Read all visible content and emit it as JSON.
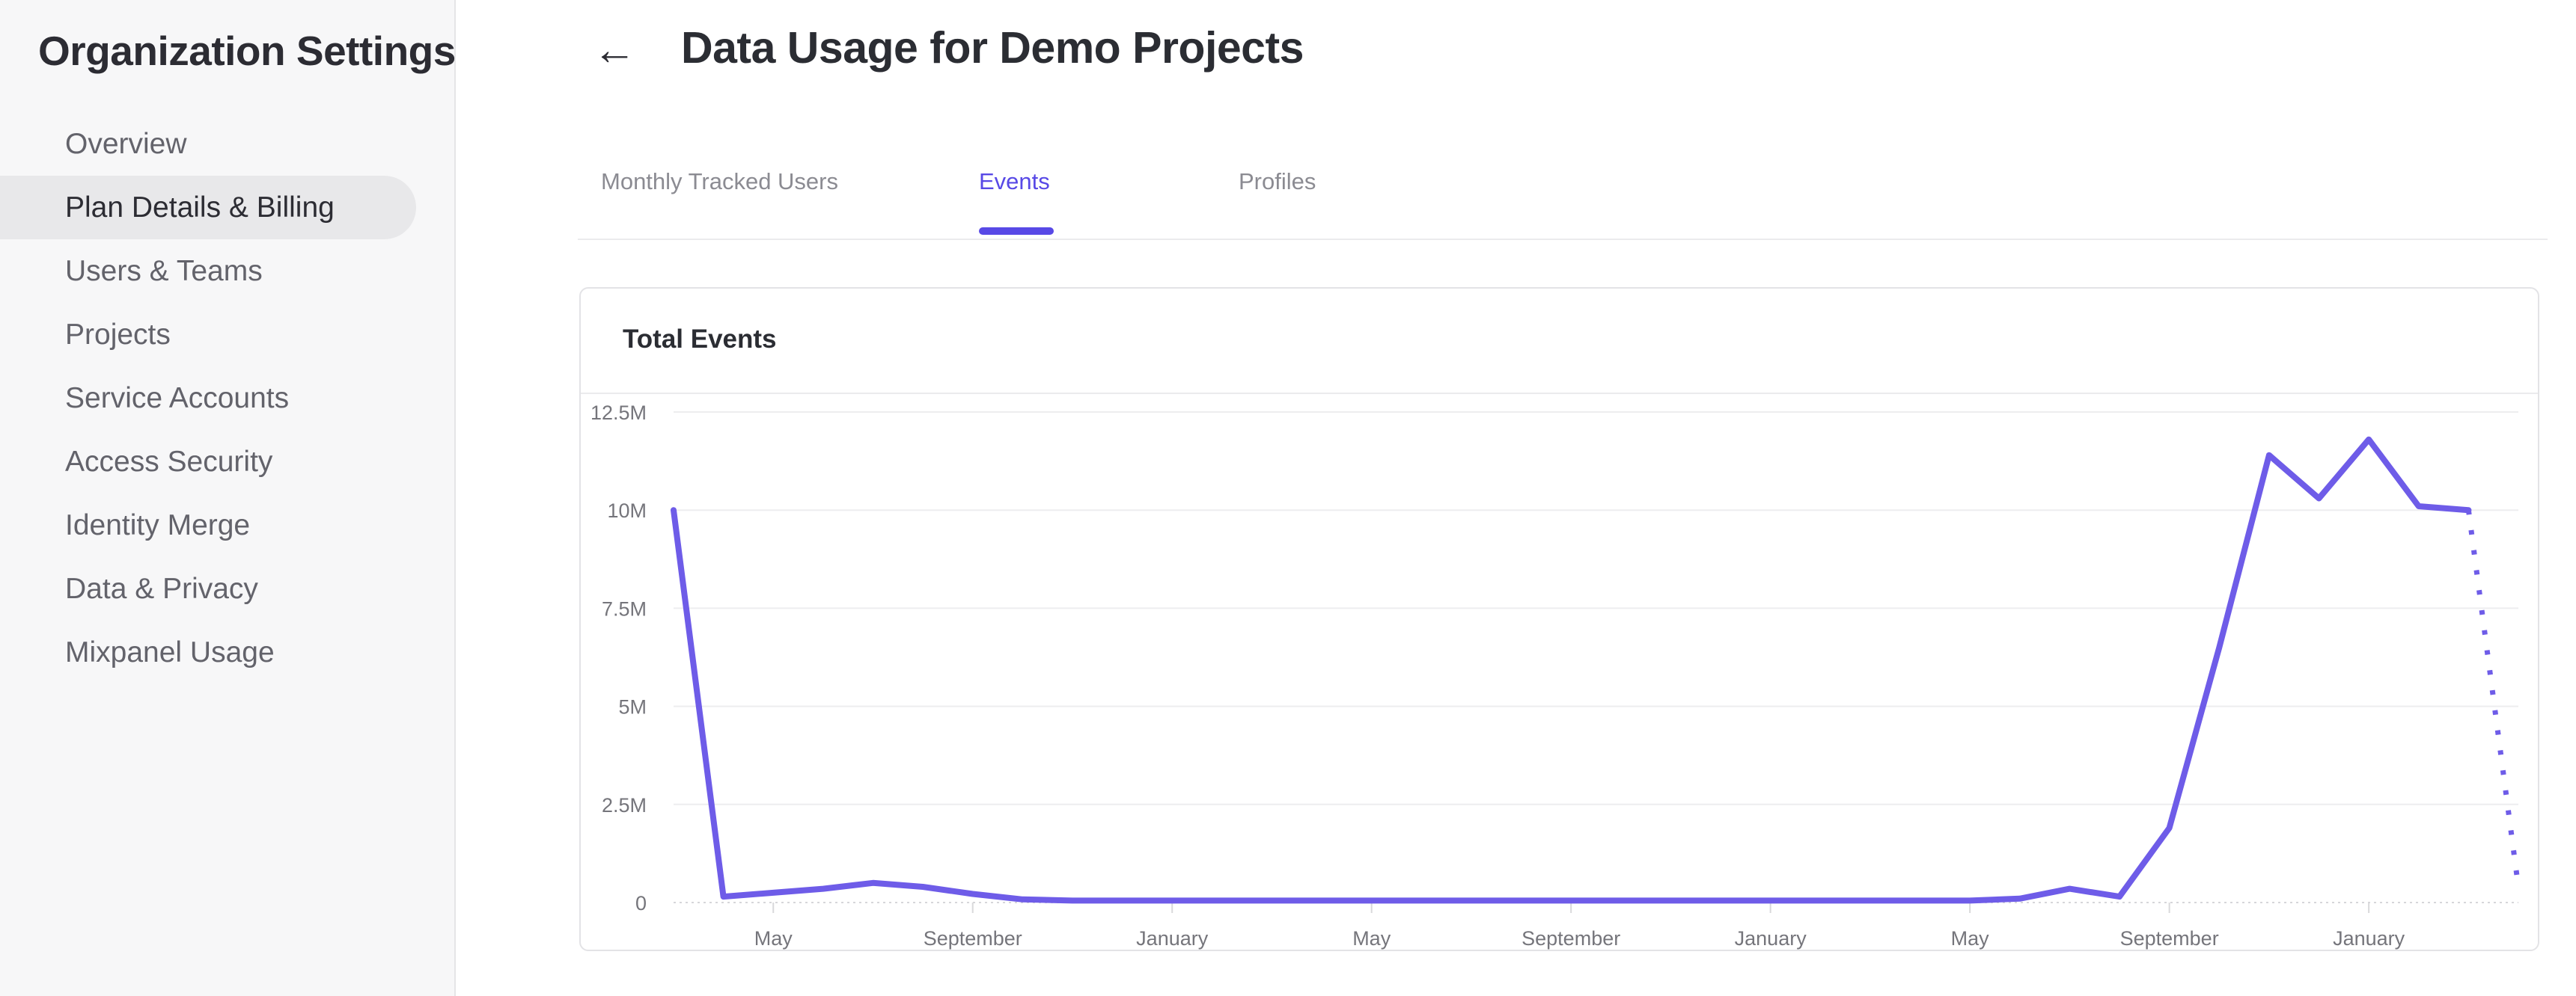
{
  "sidebar": {
    "title": "Organization Settings",
    "items": [
      {
        "label": "Overview",
        "selected": false
      },
      {
        "label": "Plan Details & Billing",
        "selected": true
      },
      {
        "label": "Users & Teams",
        "selected": false
      },
      {
        "label": "Projects",
        "selected": false
      },
      {
        "label": "Service Accounts",
        "selected": false
      },
      {
        "label": "Access Security",
        "selected": false
      },
      {
        "label": "Identity Merge",
        "selected": false
      },
      {
        "label": "Data & Privacy",
        "selected": false
      },
      {
        "label": "Mixpanel Usage",
        "selected": false
      }
    ]
  },
  "header": {
    "back_icon": "←",
    "title": "Data Usage for Demo Projects"
  },
  "tabs": [
    {
      "label": "Monthly Tracked Users",
      "active": false
    },
    {
      "label": "Events",
      "active": true
    },
    {
      "label": "Profiles",
      "active": false
    }
  ],
  "card": {
    "title": "Total Events"
  },
  "colors": {
    "accent_purple": "#5849e6",
    "chart_line": "#6e5ce8",
    "sidebar_bg": "#f7f7f8",
    "selected_item_bg": "#e8e8ea",
    "gridline": "#ededef",
    "axis_dotted": "#d6d6da",
    "axis_label": "#75757b",
    "text_dark": "#2b2d33",
    "text_gray": "#63636b"
  },
  "chart_data": {
    "type": "line",
    "title": "Total Events",
    "unit": "millions of events",
    "grid": true,
    "legend": false,
    "ylim": [
      0,
      12.5
    ],
    "y_tick_values": [
      0,
      2.5,
      5,
      7.5,
      10,
      12.5
    ],
    "y_tick_labels": [
      "0",
      "2.5M",
      "5M",
      "7.5M",
      "10M",
      "12.5M"
    ],
    "x_tick_indices": [
      2,
      6,
      10,
      14,
      18,
      22,
      26,
      30,
      34
    ],
    "x_tick_labels": [
      "May",
      "September",
      "January",
      "May",
      "September",
      "January",
      "May",
      "September",
      "January"
    ],
    "x_months": [
      "March",
      "April",
      "May",
      "June",
      "July",
      "August",
      "September",
      "October",
      "November",
      "December",
      "January",
      "February",
      "March",
      "April",
      "May",
      "June",
      "July",
      "August",
      "September",
      "October",
      "November",
      "December",
      "January",
      "February",
      "March",
      "April",
      "May",
      "June",
      "July",
      "August",
      "September",
      "October",
      "November",
      "December",
      "January",
      "February",
      "March",
      "April"
    ],
    "values_millions": [
      10,
      0.15,
      0.25,
      0.35,
      0.5,
      0.4,
      0.22,
      0.08,
      0.05,
      0.05,
      0.05,
      0.05,
      0.05,
      0.05,
      0.05,
      0.05,
      0.05,
      0.05,
      0.05,
      0.05,
      0.05,
      0.05,
      0.05,
      0.05,
      0.05,
      0.05,
      0.05,
      0.1,
      0.35,
      0.15,
      1.9,
      6.5,
      11.4,
      10.3,
      11.8,
      10.1,
      10,
      0.4
    ],
    "solid_end_index": 36,
    "dashed_segment": [
      36,
      37
    ],
    "line_color": "#6e5ce8"
  }
}
